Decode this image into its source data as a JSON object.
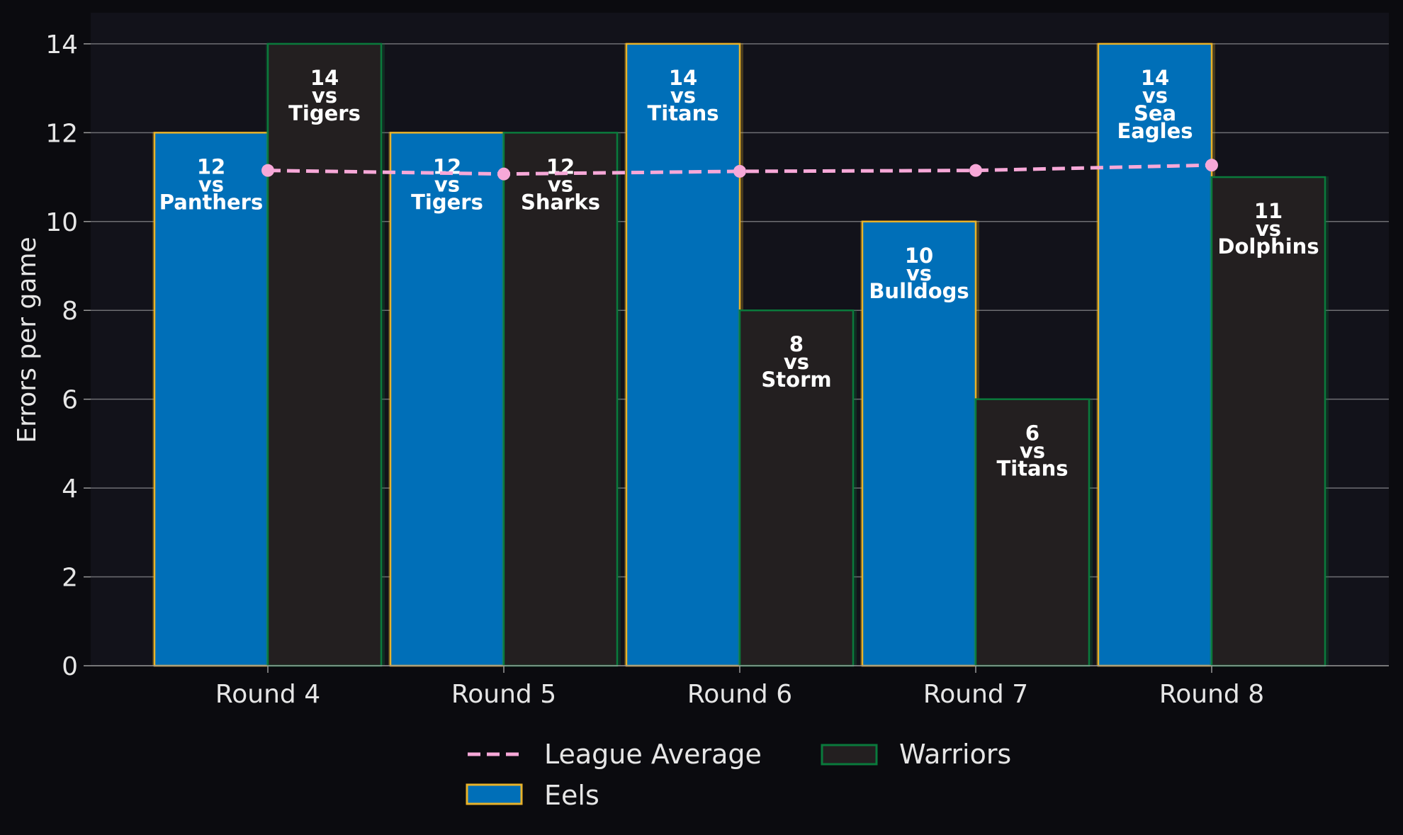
{
  "chart_data": {
    "type": "bar",
    "categories": [
      "Round 4",
      "Round 5",
      "Round 6",
      "Round 7",
      "Round 8"
    ],
    "ylabel": "Errors per game",
    "xlabel": "",
    "ylim": [
      0,
      14.7
    ],
    "yticks": [
      0,
      2,
      4,
      6,
      8,
      10,
      12,
      14
    ],
    "grid": true,
    "legend_position": "bottom-center",
    "series": [
      {
        "name": "Eels",
        "kind": "bar",
        "values": [
          12,
          12,
          14,
          10,
          14
        ],
        "labels": [
          "12\nvs\nPanthers",
          "12\nvs\nTigers",
          "14\nvs\nTitans",
          "10\nvs\nBulldogs",
          "14\nvs\nSea\nEagles"
        ],
        "color": "#006fb8",
        "edge_color": "#e8b22a"
      },
      {
        "name": "Warriors",
        "kind": "bar",
        "values": [
          14,
          12,
          8,
          6,
          11
        ],
        "labels": [
          "14\nvs\nTigers",
          "12\nvs\nSharks",
          "8\nvs\nStorm",
          "6\nvs\nTitans",
          "11\nvs\nDolphins"
        ],
        "color": "#231f20",
        "edge_color": "#0a7a3c"
      },
      {
        "name": "League Average",
        "kind": "line",
        "values": [
          11.15,
          11.07,
          11.13,
          11.15,
          11.27
        ],
        "color": "#f7a8d8",
        "line_style": "dashed"
      }
    ],
    "colors": {
      "figure_background": "#0b0b0f",
      "plot_background": "#12121a",
      "grid": "#6e6e73",
      "text": "#e6e6e6"
    }
  }
}
